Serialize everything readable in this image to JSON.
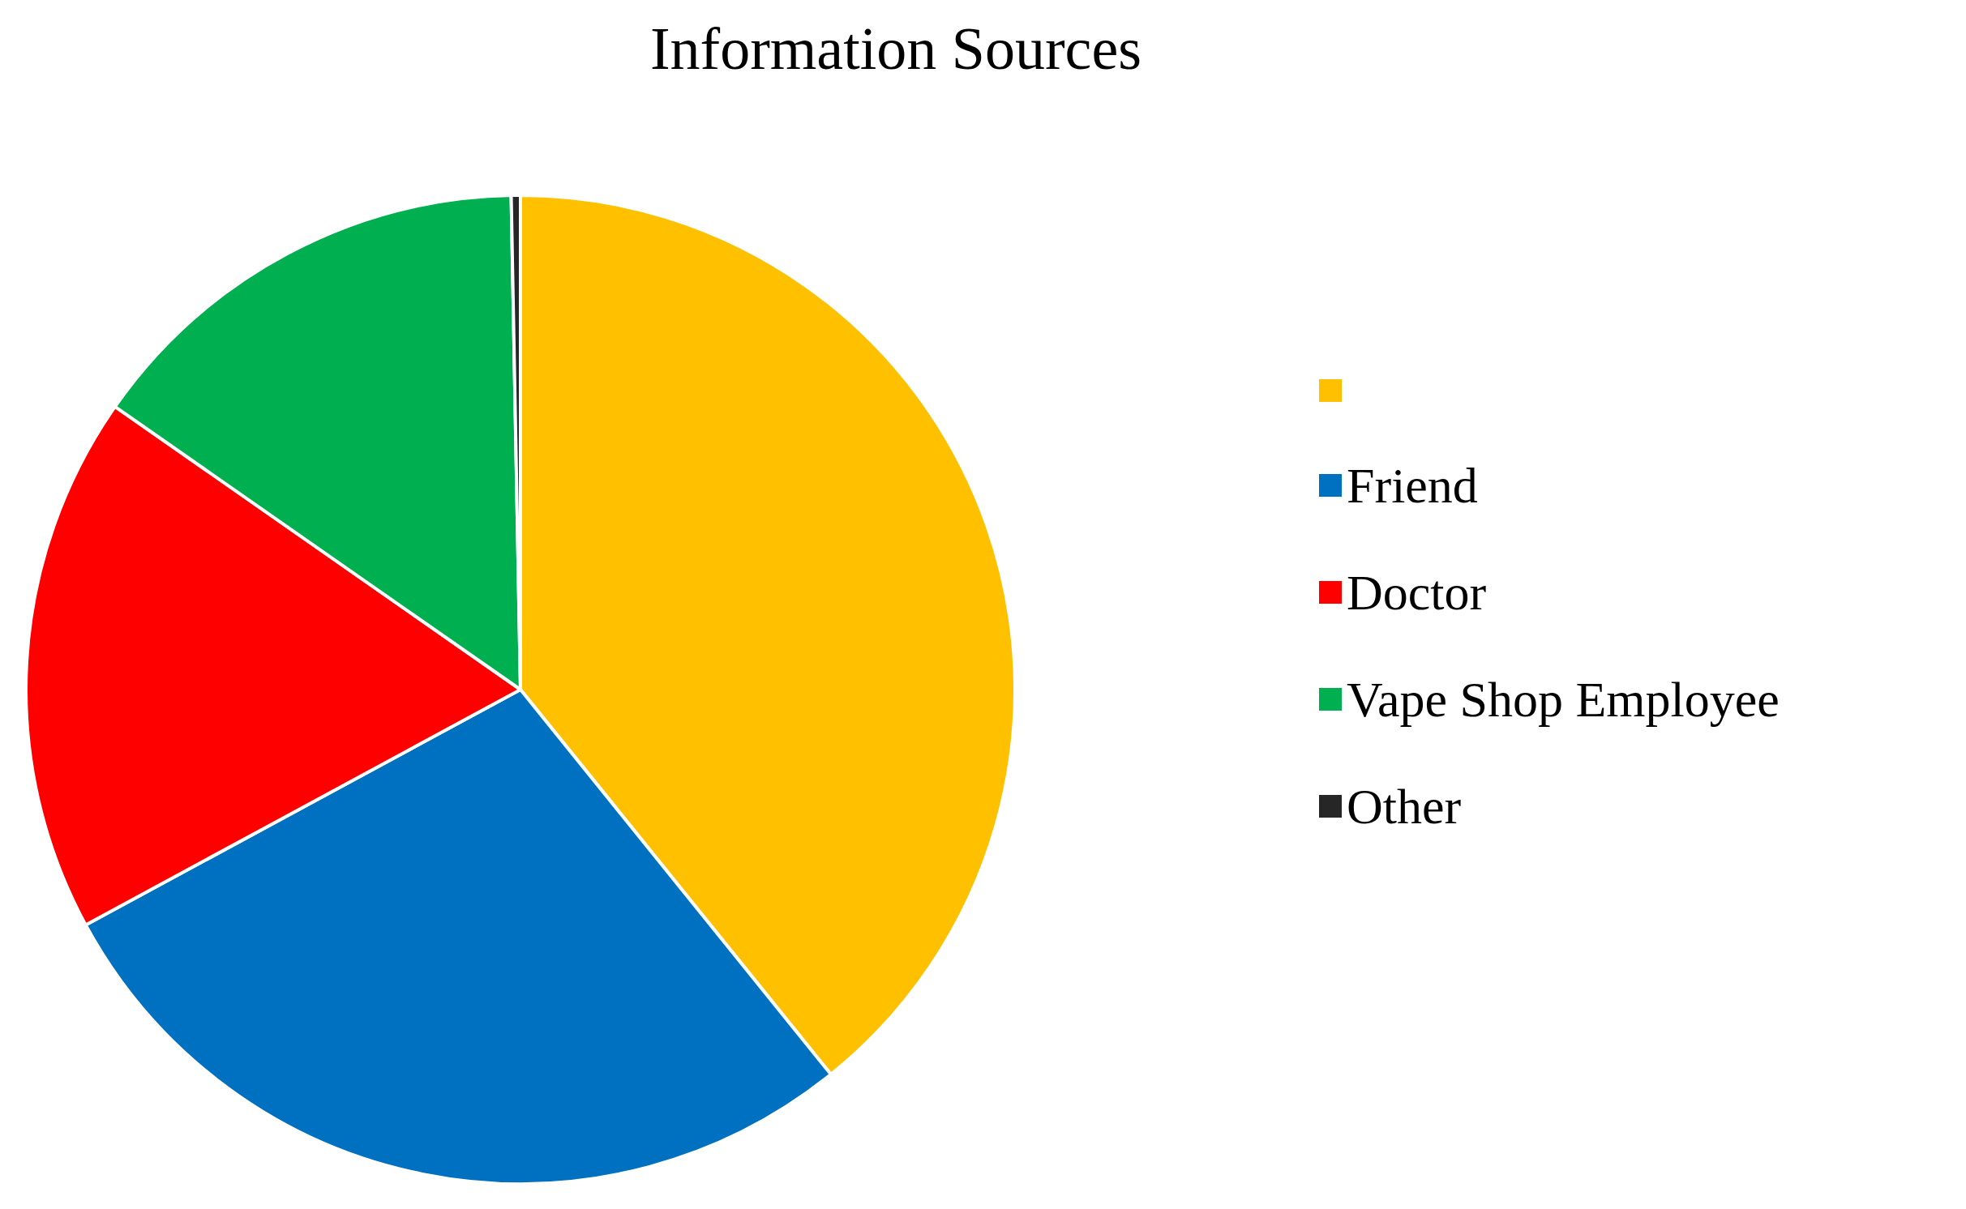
{
  "chart_data": {
    "type": "pie",
    "title": "Information Sources",
    "categories": [
      null,
      "Friend",
      "Doctor",
      "Vape Shop Employee",
      "Other"
    ],
    "values": [
      39.2,
      27.9,
      17.6,
      15.0,
      0.3
    ],
    "colors": [
      "#ffc000",
      "#0070c0",
      "#ff0000",
      "#00b050",
      "#262626"
    ],
    "legend": "right"
  }
}
